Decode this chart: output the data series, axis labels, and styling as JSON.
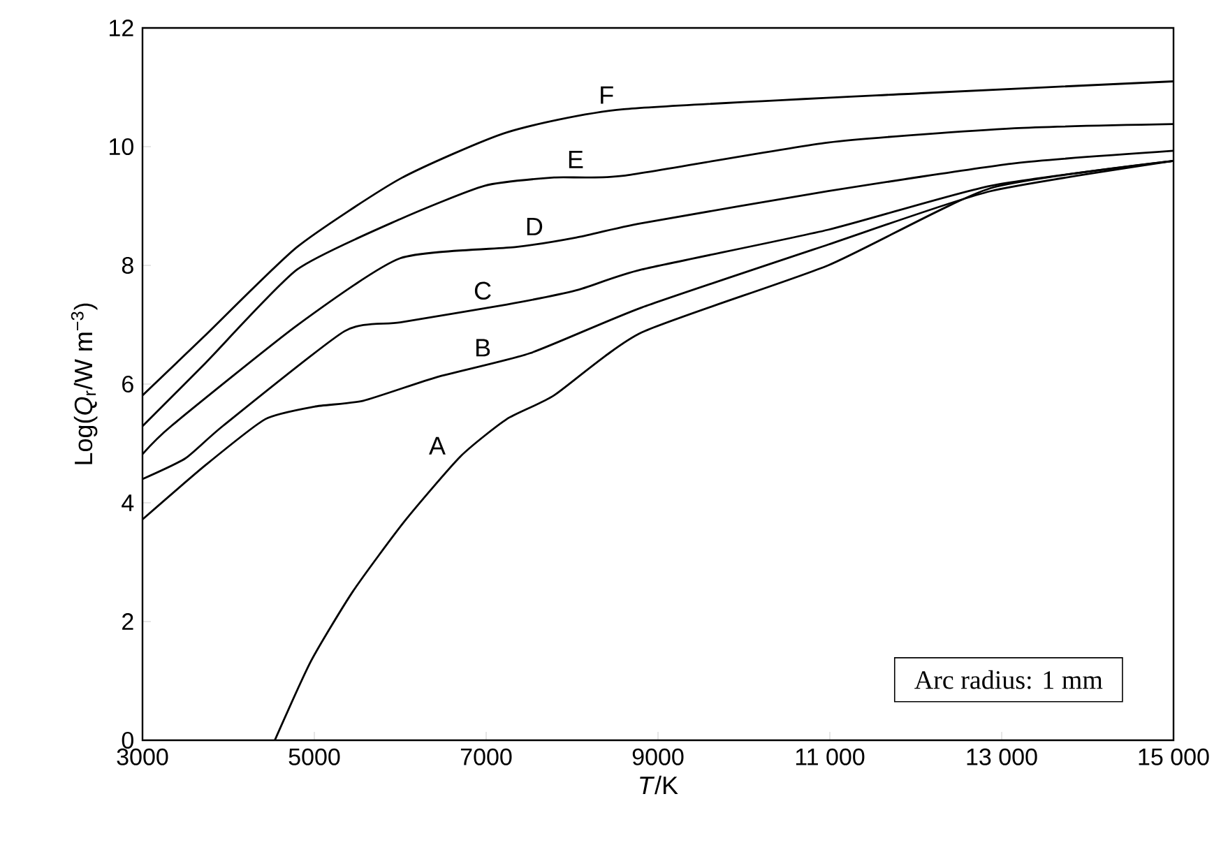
{
  "chart_data": {
    "type": "line",
    "xlabel": "*T*/K",
    "ylabel": "Log(*Q*$_{r}$/W m$^{−3}$)",
    "xlim": [
      3000,
      15000
    ],
    "ylim": [
      0,
      12
    ],
    "xticks": [
      3000,
      5000,
      7000,
      9000,
      {
        "value": 11000,
        "label": "11 000"
      },
      {
        "value": 13000,
        "label": "13 000"
      },
      {
        "value": 15000,
        "label": "15 000"
      }
    ],
    "yticks": [
      0,
      2,
      4,
      6,
      8,
      10,
      12
    ],
    "marker": "none",
    "line_style": "solid",
    "series": [
      {
        "name": "A",
        "color": "#000000",
        "x": [
          4540,
          4960,
          5450,
          6050,
          6700,
          7240,
          7790,
          8810,
          10980,
          12870,
          15000
        ],
        "values": [
          0,
          1.33,
          2.51,
          3.69,
          4.78,
          5.41,
          5.81,
          6.87,
          8.0,
          9.3,
          9.76
        ]
      },
      {
        "name": "B",
        "color": "#000000",
        "x": [
          3000,
          3730,
          4430,
          5000,
          5570,
          6430,
          7510,
          8810,
          10980,
          12870,
          15000
        ],
        "values": [
          3.72,
          4.63,
          5.41,
          5.62,
          5.72,
          6.12,
          6.52,
          7.29,
          8.35,
          9.25,
          9.76
        ]
      },
      {
        "name": "C",
        "color": "#000000",
        "x": [
          3000,
          3500,
          3940,
          5350,
          6000,
          7240,
          8050,
          8810,
          10980,
          12870,
          15000
        ],
        "values": [
          4.4,
          4.75,
          5.3,
          6.89,
          7.04,
          7.34,
          7.58,
          7.93,
          8.6,
          9.34,
          9.76
        ]
      },
      {
        "name": "D",
        "color": "#000000",
        "x": [
          3000,
          3340,
          4800,
          6000,
          7350,
          8050,
          8810,
          10980,
          13150,
          15000
        ],
        "values": [
          4.82,
          5.3,
          6.99,
          8.12,
          8.31,
          8.47,
          8.71,
          9.25,
          9.72,
          9.93
        ]
      },
      {
        "name": "E",
        "color": "#000000",
        "x": [
          3000,
          3730,
          4800,
          6000,
          6980,
          7790,
          8600,
          10980,
          13150,
          15000
        ],
        "values": [
          5.29,
          6.35,
          7.93,
          8.78,
          9.34,
          9.48,
          9.51,
          10.07,
          10.31,
          10.38
        ]
      },
      {
        "name": "F",
        "color": "#000000",
        "x": [
          3000,
          3730,
          4800,
          6000,
          7240,
          8600,
          12060,
          15000
        ],
        "values": [
          5.81,
          6.82,
          8.31,
          9.46,
          10.24,
          10.63,
          10.9,
          11.1
        ]
      }
    ],
    "annotations": [
      "Arc radius: 1 mm"
    ]
  }
}
